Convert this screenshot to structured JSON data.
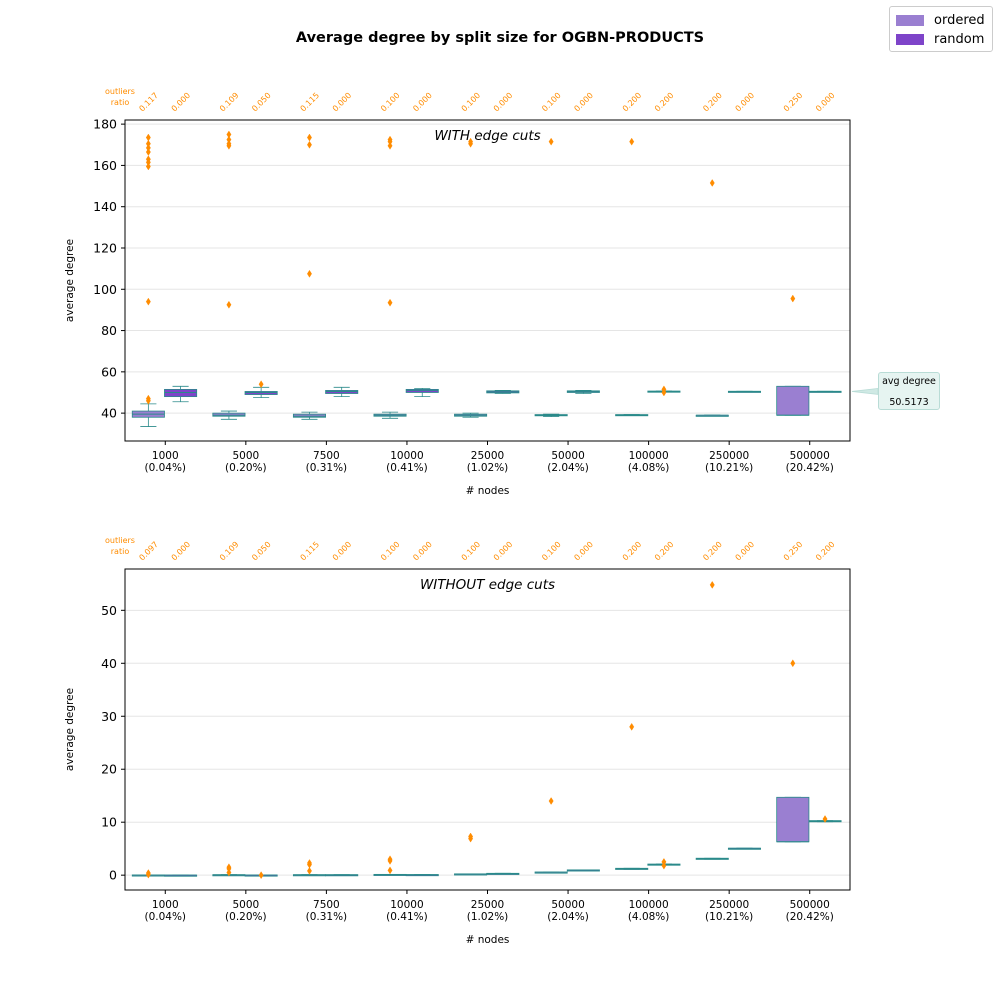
{
  "chart_data": {
    "type": "box",
    "title": "Average degree by split size for OGBN-PRODUCTS",
    "legend": {
      "placement": "top-right",
      "entries": [
        {
          "name": "ordered",
          "color": "#9a7fd1"
        },
        {
          "name": "random",
          "color": "#7e44c9"
        }
      ]
    },
    "categories": [
      {
        "nodes": "1000",
        "pct": "(0.04%)"
      },
      {
        "nodes": "5000",
        "pct": "(0.20%)"
      },
      {
        "nodes": "7500",
        "pct": "(0.31%)"
      },
      {
        "nodes": "10000",
        "pct": "(0.41%)"
      },
      {
        "nodes": "25000",
        "pct": "(1.02%)"
      },
      {
        "nodes": "50000",
        "pct": "(2.04%)"
      },
      {
        "nodes": "100000",
        "pct": "(4.08%)"
      },
      {
        "nodes": "250000",
        "pct": "(10.21%)"
      },
      {
        "nodes": "500000",
        "pct": "(20.42%)"
      }
    ],
    "colors": {
      "ordered_box": "#9a7fd1",
      "random_box": "#7e44c9",
      "line": "#2a8a8a",
      "outlier": "#ff8c00",
      "outlier_text": "#ff8c00",
      "grid": "#e5e5e5"
    },
    "panels": [
      {
        "subtitle": "WITH edge cuts",
        "xlabel": "# nodes",
        "ylabel": "average degree",
        "ylim": [
          26.5,
          182
        ],
        "yticks": [
          40,
          60,
          80,
          100,
          120,
          140,
          160,
          180
        ],
        "outliers_label": [
          "outliers",
          "ratio"
        ],
        "outlier_ratios": [
          "0.117",
          "0.000",
          "0.109",
          "0.050",
          "0.115",
          "0.000",
          "0.100",
          "0.000",
          "0.100",
          "0.000",
          "0.100",
          "0.000",
          "0.200",
          "0.200",
          "0.200",
          "0.000",
          "0.250",
          "0.000"
        ],
        "annotation": {
          "label": "avg degree",
          "value": "50.5173",
          "y": 50.5
        },
        "boxes": [
          {
            "cat": 0,
            "series": "ordered",
            "q1": 38.0,
            "med": 39.5,
            "q3": 41.0,
            "wlo": 33.5,
            "whi": 44.5,
            "outliers": [
              173.5,
              170.5,
              168.5,
              166.5,
              163.0,
              161.5,
              159.5,
              94.0,
              47.0,
              46.0
            ]
          },
          {
            "cat": 0,
            "series": "random",
            "q1": 48.0,
            "med": 50.0,
            "q3": 51.5,
            "wlo": 45.5,
            "whi": 53.0,
            "outliers": []
          },
          {
            "cat": 1,
            "series": "ordered",
            "q1": 38.5,
            "med": 39.0,
            "q3": 40.0,
            "wlo": 37.0,
            "whi": 41.0,
            "outliers": [
              175.0,
              172.5,
              170.5,
              169.5,
              92.5
            ]
          },
          {
            "cat": 1,
            "series": "random",
            "q1": 49.0,
            "med": 50.0,
            "q3": 50.5,
            "wlo": 47.5,
            "whi": 52.5,
            "outliers": [
              54.0
            ]
          },
          {
            "cat": 2,
            "series": "ordered",
            "q1": 38.0,
            "med": 38.5,
            "q3": 39.5,
            "wlo": 37.0,
            "whi": 40.5,
            "outliers": [
              173.5,
              170.0,
              107.5
            ]
          },
          {
            "cat": 2,
            "series": "random",
            "q1": 49.5,
            "med": 50.5,
            "q3": 51.0,
            "wlo": 48.0,
            "whi": 52.5,
            "outliers": []
          },
          {
            "cat": 3,
            "series": "ordered",
            "q1": 38.5,
            "med": 39.0,
            "q3": 39.5,
            "wlo": 37.5,
            "whi": 40.5,
            "outliers": [
              172.5,
              171.5,
              169.5,
              93.5
            ]
          },
          {
            "cat": 3,
            "series": "random",
            "q1": 50.0,
            "med": 51.0,
            "q3": 51.5,
            "wlo": 48.0,
            "whi": 52.0,
            "outliers": []
          },
          {
            "cat": 4,
            "series": "ordered",
            "q1": 38.5,
            "med": 39.0,
            "q3": 39.5,
            "wlo": 38.0,
            "whi": 40.0,
            "outliers": [
              171.5,
              170.5
            ]
          },
          {
            "cat": 4,
            "series": "random",
            "q1": 49.8,
            "med": 50.3,
            "q3": 50.8,
            "wlo": 49.5,
            "whi": 51.0,
            "outliers": []
          },
          {
            "cat": 5,
            "series": "ordered",
            "q1": 38.7,
            "med": 39.0,
            "q3": 39.3,
            "wlo": 38.3,
            "whi": 39.5,
            "outliers": [
              171.5
            ]
          },
          {
            "cat": 5,
            "series": "random",
            "q1": 50.0,
            "med": 50.4,
            "q3": 50.8,
            "wlo": 49.5,
            "whi": 51.0,
            "outliers": []
          },
          {
            "cat": 6,
            "series": "ordered",
            "q1": 38.9,
            "med": 39.1,
            "q3": 39.3,
            "wlo": 38.9,
            "whi": 39.3,
            "outliers": [
              171.5
            ]
          },
          {
            "cat": 6,
            "series": "random",
            "q1": 50.3,
            "med": 50.5,
            "q3": 50.7,
            "wlo": 50.3,
            "whi": 50.7,
            "outliers": [
              51.5,
              50.0
            ]
          },
          {
            "cat": 7,
            "series": "ordered",
            "q1": 39.0,
            "med": 39.0,
            "q3": 39.0,
            "wlo": 39.0,
            "whi": 39.0,
            "outliers": [
              151.5
            ]
          },
          {
            "cat": 7,
            "series": "random",
            "q1": 50.4,
            "med": 50.5,
            "q3": 50.6,
            "wlo": 50.4,
            "whi": 50.6,
            "outliers": []
          },
          {
            "cat": 8,
            "series": "ordered",
            "q1": 39.0,
            "med": 39.0,
            "q3": 53.0,
            "wlo": 39.0,
            "whi": 53.0,
            "outliers": [
              95.5
            ]
          },
          {
            "cat": 8,
            "series": "random",
            "q1": 50.4,
            "med": 50.5,
            "q3": 50.6,
            "wlo": 50.4,
            "whi": 50.6,
            "outliers": []
          }
        ]
      },
      {
        "subtitle": "WITHOUT edge cuts",
        "xlabel": "# nodes",
        "ylabel": "average degree",
        "ylim": [
          -2.8,
          57.8
        ],
        "yticks": [
          0,
          10,
          20,
          30,
          40,
          50
        ],
        "outliers_label": [
          "outliers",
          "ratio"
        ],
        "outlier_ratios": [
          "0.097",
          "0.000",
          "0.109",
          "0.050",
          "0.115",
          "0.000",
          "0.100",
          "0.000",
          "0.100",
          "0.000",
          "0.100",
          "0.000",
          "0.200",
          "0.200",
          "0.200",
          "0.000",
          "0.250",
          "0.200"
        ],
        "boxes": [
          {
            "cat": 0,
            "series": "ordered",
            "q1": 0.0,
            "med": 0.0,
            "q3": 0.05,
            "wlo": 0.0,
            "whi": 0.05,
            "outliers": [
              0.4,
              0.1
            ]
          },
          {
            "cat": 0,
            "series": "random",
            "q1": 0.0,
            "med": 0.0,
            "q3": 0.02,
            "wlo": 0.0,
            "whi": 0.02,
            "outliers": []
          },
          {
            "cat": 1,
            "series": "ordered",
            "q1": 0.0,
            "med": 0.05,
            "q3": 0.1,
            "wlo": 0.0,
            "whi": 0.1,
            "outliers": [
              1.5,
              1.2,
              0.5
            ]
          },
          {
            "cat": 1,
            "series": "random",
            "q1": 0.0,
            "med": 0.02,
            "q3": 0.04,
            "wlo": 0.0,
            "whi": 0.04,
            "outliers": [
              0.0
            ]
          },
          {
            "cat": 2,
            "series": "ordered",
            "q1": 0.0,
            "med": 0.05,
            "q3": 0.1,
            "wlo": 0.0,
            "whi": 0.1,
            "outliers": [
              2.3,
              2.0,
              0.8
            ]
          },
          {
            "cat": 2,
            "series": "random",
            "q1": 0.02,
            "med": 0.05,
            "q3": 0.1,
            "wlo": 0.02,
            "whi": 0.1,
            "outliers": []
          },
          {
            "cat": 3,
            "series": "ordered",
            "q1": 0.05,
            "med": 0.1,
            "q3": 0.15,
            "wlo": 0.05,
            "whi": 0.15,
            "outliers": [
              3.0,
              2.7,
              0.9
            ]
          },
          {
            "cat": 3,
            "series": "random",
            "q1": 0.05,
            "med": 0.08,
            "q3": 0.12,
            "wlo": 0.05,
            "whi": 0.12,
            "outliers": []
          },
          {
            "cat": 4,
            "series": "ordered",
            "q1": 0.15,
            "med": 0.2,
            "q3": 0.25,
            "wlo": 0.15,
            "whi": 0.25,
            "outliers": [
              7.3,
              6.9
            ]
          },
          {
            "cat": 4,
            "series": "random",
            "q1": 0.25,
            "med": 0.3,
            "q3": 0.35,
            "wlo": 0.25,
            "whi": 0.35,
            "outliers": []
          },
          {
            "cat": 5,
            "series": "ordered",
            "q1": 0.5,
            "med": 0.55,
            "q3": 0.6,
            "wlo": 0.5,
            "whi": 0.6,
            "outliers": [
              14.0
            ]
          },
          {
            "cat": 5,
            "series": "random",
            "q1": 0.9,
            "med": 0.95,
            "q3": 1.0,
            "wlo": 0.9,
            "whi": 1.0,
            "outliers": []
          },
          {
            "cat": 6,
            "series": "ordered",
            "q1": 1.1,
            "med": 1.2,
            "q3": 1.3,
            "wlo": 1.1,
            "whi": 1.3,
            "outliers": [
              28.0
            ]
          },
          {
            "cat": 6,
            "series": "random",
            "q1": 1.9,
            "med": 2.0,
            "q3": 2.1,
            "wlo": 1.9,
            "whi": 2.1,
            "outliers": [
              2.5,
              1.8
            ]
          },
          {
            "cat": 7,
            "series": "ordered",
            "q1": 3.0,
            "med": 3.1,
            "q3": 3.2,
            "wlo": 3.0,
            "whi": 3.2,
            "outliers": [
              54.8
            ]
          },
          {
            "cat": 7,
            "series": "random",
            "q1": 5.0,
            "med": 5.05,
            "q3": 5.1,
            "wlo": 5.0,
            "whi": 5.1,
            "outliers": []
          },
          {
            "cat": 8,
            "series": "ordered",
            "q1": 6.3,
            "med": 6.3,
            "q3": 14.7,
            "wlo": 6.3,
            "whi": 14.7,
            "outliers": [
              40.0
            ]
          },
          {
            "cat": 8,
            "series": "random",
            "q1": 10.1,
            "med": 10.2,
            "q3": 10.3,
            "wlo": 10.1,
            "whi": 10.3,
            "outliers": [
              10.6
            ]
          }
        ]
      }
    ]
  }
}
